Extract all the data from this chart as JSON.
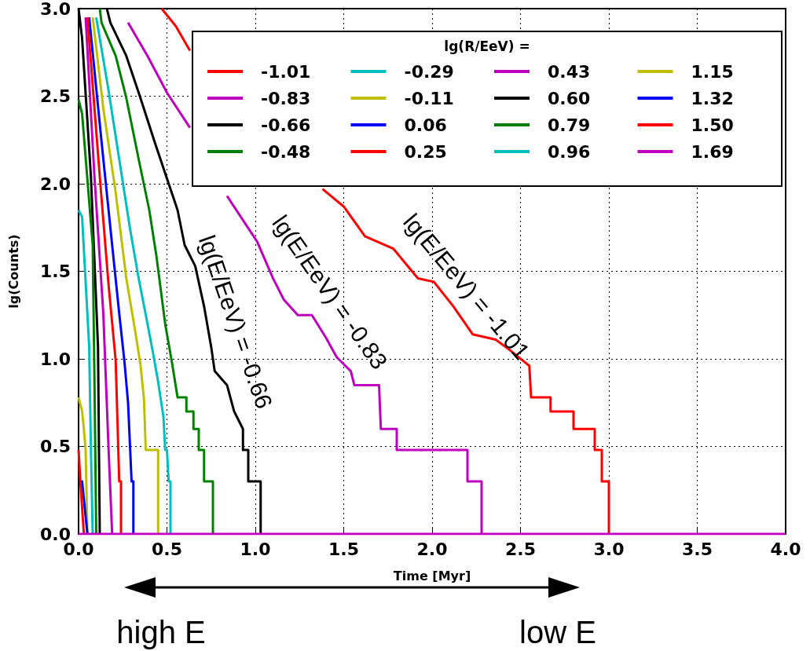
{
  "chart_data": {
    "type": "line",
    "xlabel": "Time [Myr]",
    "ylabel": "lg(Counts)",
    "legend_title": "lg(R/EeV) =",
    "legend": "top right",
    "grid": true,
    "line_style": "solid",
    "marker": "none",
    "xlim": [
      0,
      4
    ],
    "ylim": [
      0,
      3
    ],
    "xticks": [
      {
        "value": 0,
        "label": "0.0"
      },
      {
        "value": 0.5,
        "label": "0.5"
      },
      {
        "value": 1,
        "label": "1.0"
      },
      {
        "value": 1.5,
        "label": "1.5"
      },
      {
        "value": 2,
        "label": "2.0"
      },
      {
        "value": 2.5,
        "label": "2.5"
      },
      {
        "value": 3,
        "label": "3.0"
      },
      {
        "value": 3.5,
        "label": "3.5"
      },
      {
        "value": 4,
        "label": "4.0"
      }
    ],
    "yticks": [
      {
        "value": 0,
        "label": "0.0"
      },
      {
        "value": 0.5,
        "label": "0.5"
      },
      {
        "value": 1,
        "label": "1.0"
      },
      {
        "value": 1.5,
        "label": "1.5"
      },
      {
        "value": 2,
        "label": "2.0"
      },
      {
        "value": 2.5,
        "label": "2.5"
      },
      {
        "value": 3,
        "label": "3.0"
      }
    ],
    "series": [
      {
        "name": "-1.01",
        "color": "#ff0000",
        "x": [
          0.47,
          0.55,
          0.63,
          0.64,
          1.38,
          1.5,
          1.62,
          1.78,
          1.92,
          2.01,
          2.12,
          2.23,
          2.36,
          2.44,
          2.55,
          2.56,
          2.67,
          2.67,
          2.8,
          2.8,
          2.92,
          2.92,
          2.96,
          2.96,
          3.0,
          3.0
        ],
        "values": [
          3.0,
          2.9,
          2.76,
          null,
          1.97,
          1.87,
          1.7,
          1.63,
          1.46,
          1.44,
          1.3,
          1.14,
          1.11,
          1.05,
          0.96,
          0.78,
          0.78,
          0.7,
          0.7,
          0.6,
          0.6,
          0.48,
          0.48,
          0.3,
          0.3,
          0
        ]
      },
      {
        "name": "-0.83",
        "color": "#bf00bf",
        "x": [
          0.28,
          0.39,
          0.5,
          0.63,
          0.64,
          0.84,
          1.01,
          1.1,
          1.16,
          1.24,
          1.32,
          1.4,
          1.46,
          1.54,
          1.56,
          1.7,
          1.71,
          1.8,
          1.8,
          2.2,
          2.2,
          2.28,
          2.28
        ],
        "values": [
          2.92,
          2.73,
          2.52,
          2.32,
          null,
          1.93,
          1.67,
          1.46,
          1.34,
          1.25,
          1.25,
          1.12,
          1.01,
          0.93,
          0.85,
          0.85,
          0.6,
          0.6,
          0.48,
          0.48,
          0.3,
          0.3,
          0
        ]
      },
      {
        "name": "-0.66",
        "color": "#000000",
        "x": [
          0.16,
          0.18,
          0.27,
          0.35,
          0.43,
          0.51,
          0.56,
          0.6,
          0.66,
          0.71,
          0.75,
          0.77,
          0.84,
          0.88,
          0.93,
          0.93,
          0.96,
          0.96,
          1.03,
          1.03
        ],
        "values": [
          3.0,
          2.92,
          2.73,
          2.49,
          2.24,
          2.0,
          1.85,
          1.65,
          1.53,
          1.3,
          1.07,
          0.93,
          0.85,
          0.7,
          0.6,
          0.48,
          0.48,
          0.3,
          0.3,
          0
        ]
      },
      {
        "name": "-0.48",
        "color": "#008000",
        "x": [
          0.12,
          0.13,
          0.21,
          0.27,
          0.34,
          0.4,
          0.44,
          0.49,
          0.53,
          0.56,
          0.61,
          0.61,
          0.65,
          0.65,
          0.68,
          0.68,
          0.71,
          0.71,
          0.76,
          0.76
        ],
        "values": [
          3.0,
          2.92,
          2.73,
          2.49,
          2.14,
          1.85,
          1.59,
          1.2,
          0.97,
          0.78,
          0.78,
          0.7,
          0.7,
          0.6,
          0.6,
          0.48,
          0.48,
          0.3,
          0.3,
          0
        ]
      },
      {
        "name": "-0.29",
        "color": "#00bfbf",
        "x": [
          0.1,
          0.17,
          0.23,
          0.29,
          0.34,
          0.39,
          0.42,
          0.45,
          0.48,
          0.49,
          0.5,
          0.51,
          0.52,
          0.52
        ],
        "values": [
          2.95,
          2.53,
          2.14,
          1.75,
          1.46,
          1.2,
          1.04,
          0.87,
          0.67,
          0.48,
          0.48,
          0.3,
          0.3,
          0
        ]
      },
      {
        "name": "-0.11",
        "color": "#bfbf00",
        "x": [
          0.08,
          0.14,
          0.21,
          0.27,
          0.32,
          0.35,
          0.37,
          0.38,
          0.45,
          0.45
        ],
        "values": [
          2.95,
          2.43,
          1.95,
          1.46,
          1.16,
          0.97,
          0.77,
          0.48,
          0.48,
          0
        ]
      },
      {
        "name": "0.06",
        "color": "#0000ff",
        "x": [
          0.06,
          0.13,
          0.19,
          0.23,
          0.26,
          0.28,
          0.3,
          0.31,
          0.31
        ],
        "values": [
          2.95,
          2.24,
          1.65,
          1.26,
          0.98,
          0.75,
          0.3,
          0.3,
          0
        ]
      },
      {
        "name": "0.25",
        "color": "#ff0000",
        "x": [
          0.05,
          0.12,
          0.17,
          0.21,
          0.23,
          0.24,
          0.24
        ],
        "values": [
          2.95,
          2.04,
          1.42,
          0.99,
          0.3,
          0.3,
          0
        ]
      },
      {
        "name": "0.43",
        "color": "#bf00bf",
        "x": [
          0.04,
          0.09,
          0.14,
          0.17,
          0.19
        ],
        "values": [
          2.95,
          2.04,
          1.26,
          0.48,
          0
        ]
      },
      {
        "name": "0.60",
        "color": "#000000",
        "x": [
          0.0,
          0.02,
          0.07,
          0.11,
          0.12
        ],
        "values": [
          3.0,
          2.83,
          2.04,
          1.07,
          0
        ]
      },
      {
        "name": "0.79",
        "color": "#008000",
        "x": [
          0.0,
          0.02,
          0.08,
          0.09,
          0.1
        ],
        "values": [
          2.48,
          2.4,
          1.65,
          0.87,
          0
        ]
      },
      {
        "name": "0.96",
        "color": "#00bfbf",
        "x": [
          0.0,
          0.02,
          0.06,
          0.07,
          0.08
        ],
        "values": [
          1.85,
          1.81,
          1.07,
          0.48,
          0
        ]
      },
      {
        "name": "1.15",
        "color": "#bfbf00",
        "x": [
          0.0,
          0.02,
          0.03,
          0.04,
          0.05
        ],
        "values": [
          0.78,
          0.7,
          0.6,
          0.48,
          0
        ]
      },
      {
        "name": "1.32",
        "color": "#0000ff",
        "x": [
          0.01,
          0.02,
          0.05
        ],
        "values": [
          0.3,
          0.3,
          0
        ]
      },
      {
        "name": "1.50",
        "color": "#ff0000",
        "x": [
          0.0,
          0.01,
          0.03
        ],
        "values": [
          0.48,
          0.3,
          0
        ]
      },
      {
        "name": "1.69",
        "color": "#bf00bf",
        "x": [
          0.0,
          4.0
        ],
        "values": [
          0,
          0
        ]
      }
    ],
    "annotations": [
      "lg(E/EeV) = -0.66",
      "lg(E/EeV) = -0.83",
      "lg(E/EeV) = -1.01",
      "high E",
      "low E"
    ]
  }
}
